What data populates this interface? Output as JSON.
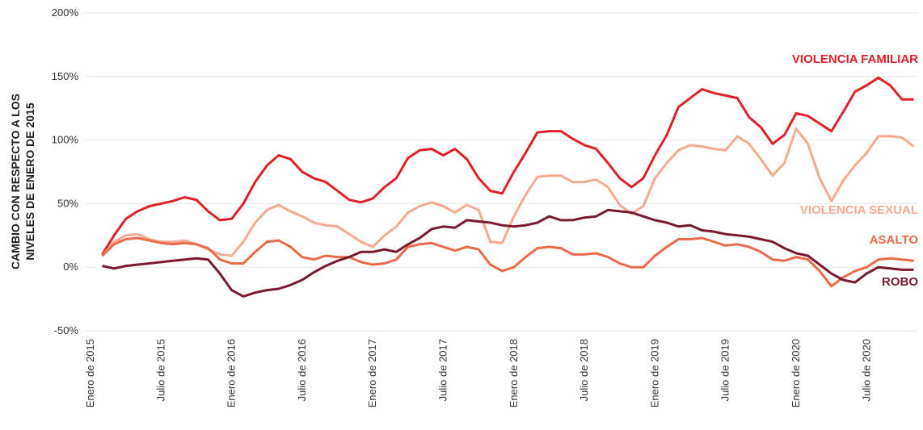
{
  "chart_data": {
    "type": "line",
    "ylabel": [
      "CAMBIO CON RESPECTO A LOS",
      "NIVELES DE ENERO DE 2015"
    ],
    "categories": [
      "Enero de 2015",
      null,
      null,
      null,
      null,
      null,
      "Julio de 2015",
      null,
      null,
      null,
      null,
      null,
      "Enero de 2016",
      null,
      null,
      null,
      null,
      null,
      "Julio de 2016",
      null,
      null,
      null,
      null,
      null,
      "Enero de 2017",
      null,
      null,
      null,
      null,
      null,
      "Julio de 2017",
      null,
      null,
      null,
      null,
      null,
      "Enero de 2018",
      null,
      null,
      null,
      null,
      null,
      "Julio de 2018",
      null,
      null,
      null,
      null,
      null,
      "Enero de 2019",
      null,
      null,
      null,
      null,
      null,
      "Julio de 2019",
      null,
      null,
      null,
      null,
      null,
      "Enero de 2020",
      null,
      null,
      null,
      null,
      null,
      "Julio de 2020",
      null,
      null,
      null,
      null
    ],
    "ylim": [
      -50,
      200
    ],
    "yticks": [
      {
        "value": -50,
        "label": "-50%"
      },
      {
        "value": 0,
        "label": "0%"
      },
      {
        "value": 50,
        "label": "50%"
      },
      {
        "value": 100,
        "label": "100%"
      },
      {
        "value": 150,
        "label": "150%"
      },
      {
        "value": 200,
        "label": "200%"
      }
    ],
    "grid": true,
    "series": [
      {
        "name": "VIOLENCIA FAMILIAR",
        "color": "#e0202a",
        "values": [
          null,
          10,
          25,
          38,
          44,
          48,
          50,
          52,
          55,
          53,
          44,
          37,
          38,
          50,
          67,
          80,
          88,
          85,
          75,
          70,
          67,
          60,
          53,
          51,
          54,
          63,
          70,
          86,
          92,
          93,
          88,
          93,
          85,
          70,
          60,
          58,
          75,
          90,
          106,
          107,
          107,
          101,
          96,
          93,
          82,
          70,
          63,
          70,
          88,
          104,
          126,
          133,
          140,
          137,
          135,
          133,
          118,
          110,
          97,
          104,
          121,
          119,
          113,
          107,
          122,
          138,
          143,
          149,
          143,
          132,
          132
        ]
      },
      {
        "name": "VIOLENCIA SEXUAL",
        "color": "#f5ab91",
        "values": [
          null,
          9,
          20,
          25,
          26,
          22,
          20,
          20,
          21,
          18,
          14,
          10,
          9,
          20,
          35,
          45,
          49,
          44,
          40,
          35,
          33,
          32,
          26,
          20,
          16,
          25,
          32,
          43,
          48,
          51,
          48,
          43,
          49,
          45,
          20,
          19,
          40,
          57,
          71,
          72,
          72,
          67,
          67,
          69,
          63,
          49,
          42,
          48,
          70,
          82,
          92,
          96,
          95,
          93,
          92,
          103,
          97,
          85,
          72,
          82,
          109,
          97,
          70,
          52,
          68,
          80,
          90,
          103,
          103,
          102,
          95
        ]
      },
      {
        "name": "ASALTO",
        "color": "#ea6a4c",
        "values": [
          null,
          9,
          18,
          22,
          23,
          21,
          19,
          18,
          19,
          18,
          15,
          6,
          3,
          3,
          12,
          20,
          21,
          16,
          8,
          6,
          9,
          8,
          8,
          4,
          2,
          3,
          6,
          16,
          18,
          19,
          16,
          13,
          16,
          14,
          2,
          -3,
          0,
          8,
          15,
          16,
          15,
          10,
          10,
          11,
          8,
          3,
          0,
          0,
          9,
          16,
          22,
          22,
          23,
          20,
          17,
          18,
          16,
          12,
          6,
          5,
          8,
          6,
          -3,
          -15,
          -8,
          -3,
          0,
          6,
          7,
          6,
          5
        ]
      },
      {
        "name": "ROBO",
        "color": "#7a1a2e",
        "values": [
          null,
          1,
          -1,
          1,
          2,
          3,
          4,
          5,
          6,
          7,
          6,
          -5,
          -18,
          -23,
          -20,
          -18,
          -17,
          -14,
          -10,
          -4,
          1,
          5,
          8,
          12,
          12,
          14,
          12,
          18,
          23,
          30,
          32,
          31,
          37,
          36,
          35,
          33,
          32,
          33,
          35,
          40,
          37,
          37,
          39,
          40,
          45,
          44,
          43,
          40,
          37,
          35,
          32,
          33,
          29,
          28,
          26,
          25,
          24,
          22,
          20,
          15,
          11,
          9,
          2,
          -5,
          -10,
          -12,
          -5,
          0,
          -1,
          -2,
          -2
        ]
      }
    ]
  }
}
